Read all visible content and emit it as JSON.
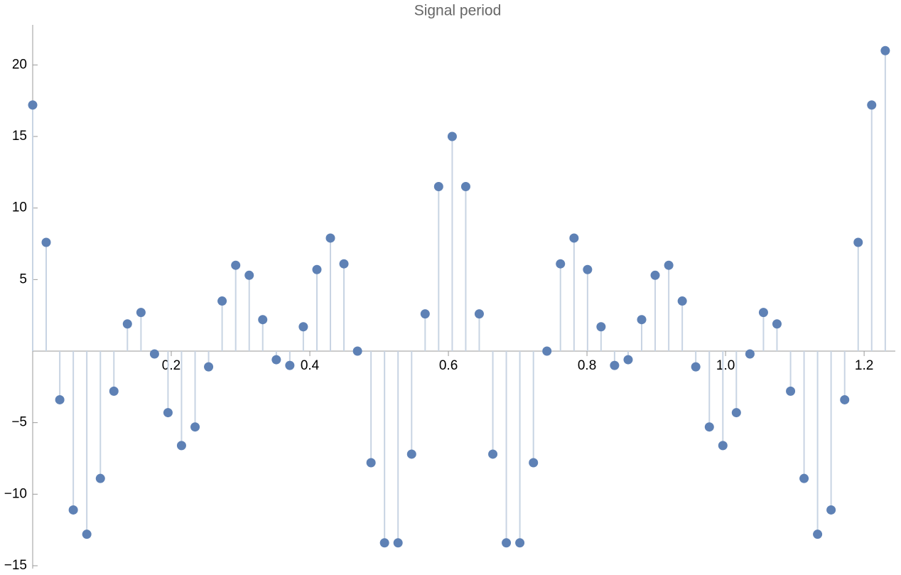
{
  "chart_data": {
    "type": "stem",
    "title": "Signal period",
    "x": [
      0,
      0.0195,
      0.0391,
      0.0586,
      0.0781,
      0.0977,
      0.1172,
      0.1367,
      0.1563,
      0.1758,
      0.1953,
      0.2148,
      0.2344,
      0.2539,
      0.2734,
      0.293,
      0.3125,
      0.332,
      0.3516,
      0.3711,
      0.3906,
      0.4102,
      0.4297,
      0.4492,
      0.4688,
      0.4883,
      0.5078,
      0.5273,
      0.5469,
      0.5664,
      0.5859,
      0.6055,
      0.625,
      0.6445,
      0.6641,
      0.6836,
      0.7031,
      0.7227,
      0.7422,
      0.7617,
      0.7813,
      0.8008,
      0.8203,
      0.8398,
      0.8594,
      0.8789,
      0.8984,
      0.918,
      0.9375,
      0.957,
      0.9766,
      0.9961,
      1.0156,
      1.0352,
      1.0547,
      1.0742,
      1.0938,
      1.1133,
      1.1328,
      1.1523,
      1.1719,
      1.1914,
      1.2109,
      1.2305
    ],
    "values": [
      17.2,
      7.6,
      -3.4,
      -11.1,
      -12.8,
      -8.9,
      -2.8,
      1.9,
      2.7,
      -0.2,
      -4.3,
      -6.6,
      -5.3,
      -1.1,
      3.5,
      6.0,
      5.3,
      2.2,
      -0.6,
      -1.0,
      1.7,
      5.7,
      7.9,
      6.1,
      0.0,
      -7.8,
      -13.4,
      -13.4,
      -7.2,
      2.6,
      11.5,
      15.0,
      11.5,
      2.6,
      -7.2,
      -13.4,
      -13.4,
      -7.8,
      0.0,
      6.1,
      7.9,
      5.7,
      1.7,
      -1.0,
      -0.6,
      2.2,
      5.3,
      6.0,
      3.5,
      -1.1,
      -5.3,
      -6.6,
      -4.3,
      -0.2,
      2.7,
      1.9,
      -2.8,
      -8.9,
      -12.8,
      -11.1,
      -3.4,
      7.6,
      17.2,
      21.0
    ],
    "color": "#5e81b5",
    "stem_color": "#c8d4e3",
    "xlim": [
      0,
      1.245
    ],
    "ylim": [
      -15.2,
      22.8
    ],
    "xticks": [
      0.2,
      0.4,
      0.6,
      0.8,
      {
        "value": 1,
        "label": "1.0"
      },
      1.2
    ],
    "yticks": [
      {
        "value": -15,
        "label": "−15"
      },
      {
        "value": -10,
        "label": "−10"
      },
      {
        "value": -5,
        "label": "−5"
      },
      5,
      10,
      15,
      20
    ]
  }
}
